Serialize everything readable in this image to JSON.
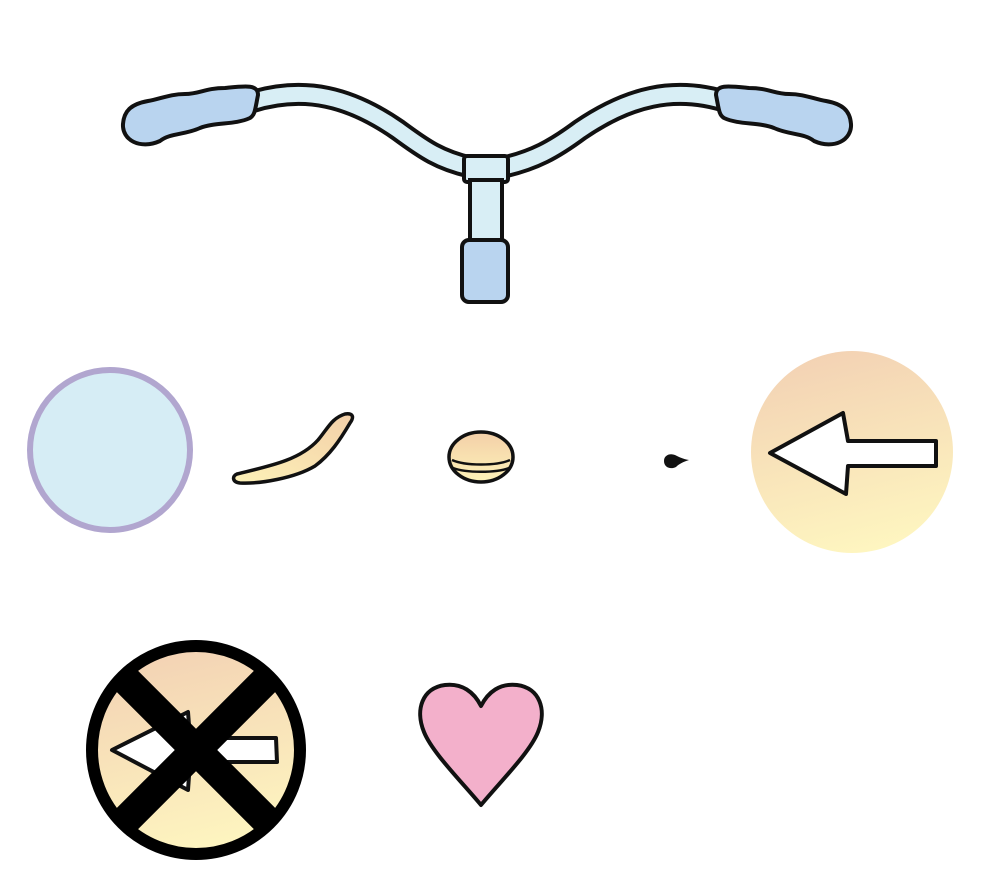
{
  "scene": {
    "background": "#ffffff",
    "outline_color": "#111111"
  },
  "items": {
    "handlebar": {
      "icon": "bicycle-handlebar-icon",
      "bar_color": "#d8eef5",
      "grip_color": "#b9d4ef"
    },
    "circle_button": {
      "icon": "empty-circle-icon",
      "fill": "#d6edf5",
      "ring": "#b1a6cf"
    },
    "crescent_piece": {
      "icon": "curved-piece-icon",
      "fill_top": "#f3cfa8",
      "fill_bottom": "#fdf2b8"
    },
    "capsule_piece": {
      "icon": "capsule-icon",
      "fill_top": "#f3cfa8",
      "fill_bottom": "#fdf2b8"
    },
    "dot_piece": {
      "icon": "small-dot-icon",
      "fill": "#111111"
    },
    "arrow_button": {
      "icon": "left-arrow-icon",
      "fill_top": "#f3d2b4",
      "fill_bottom": "#fef6c0",
      "arrow": "#ffffff"
    },
    "no_arrow_button": {
      "icon": "crossed-left-arrow-icon",
      "fill_top": "#f3d2b4",
      "fill_bottom": "#fef6c0",
      "border": "#000000",
      "cross": "#000000"
    },
    "heart_button": {
      "icon": "heart-icon",
      "fill": "#f3b0cb"
    }
  }
}
